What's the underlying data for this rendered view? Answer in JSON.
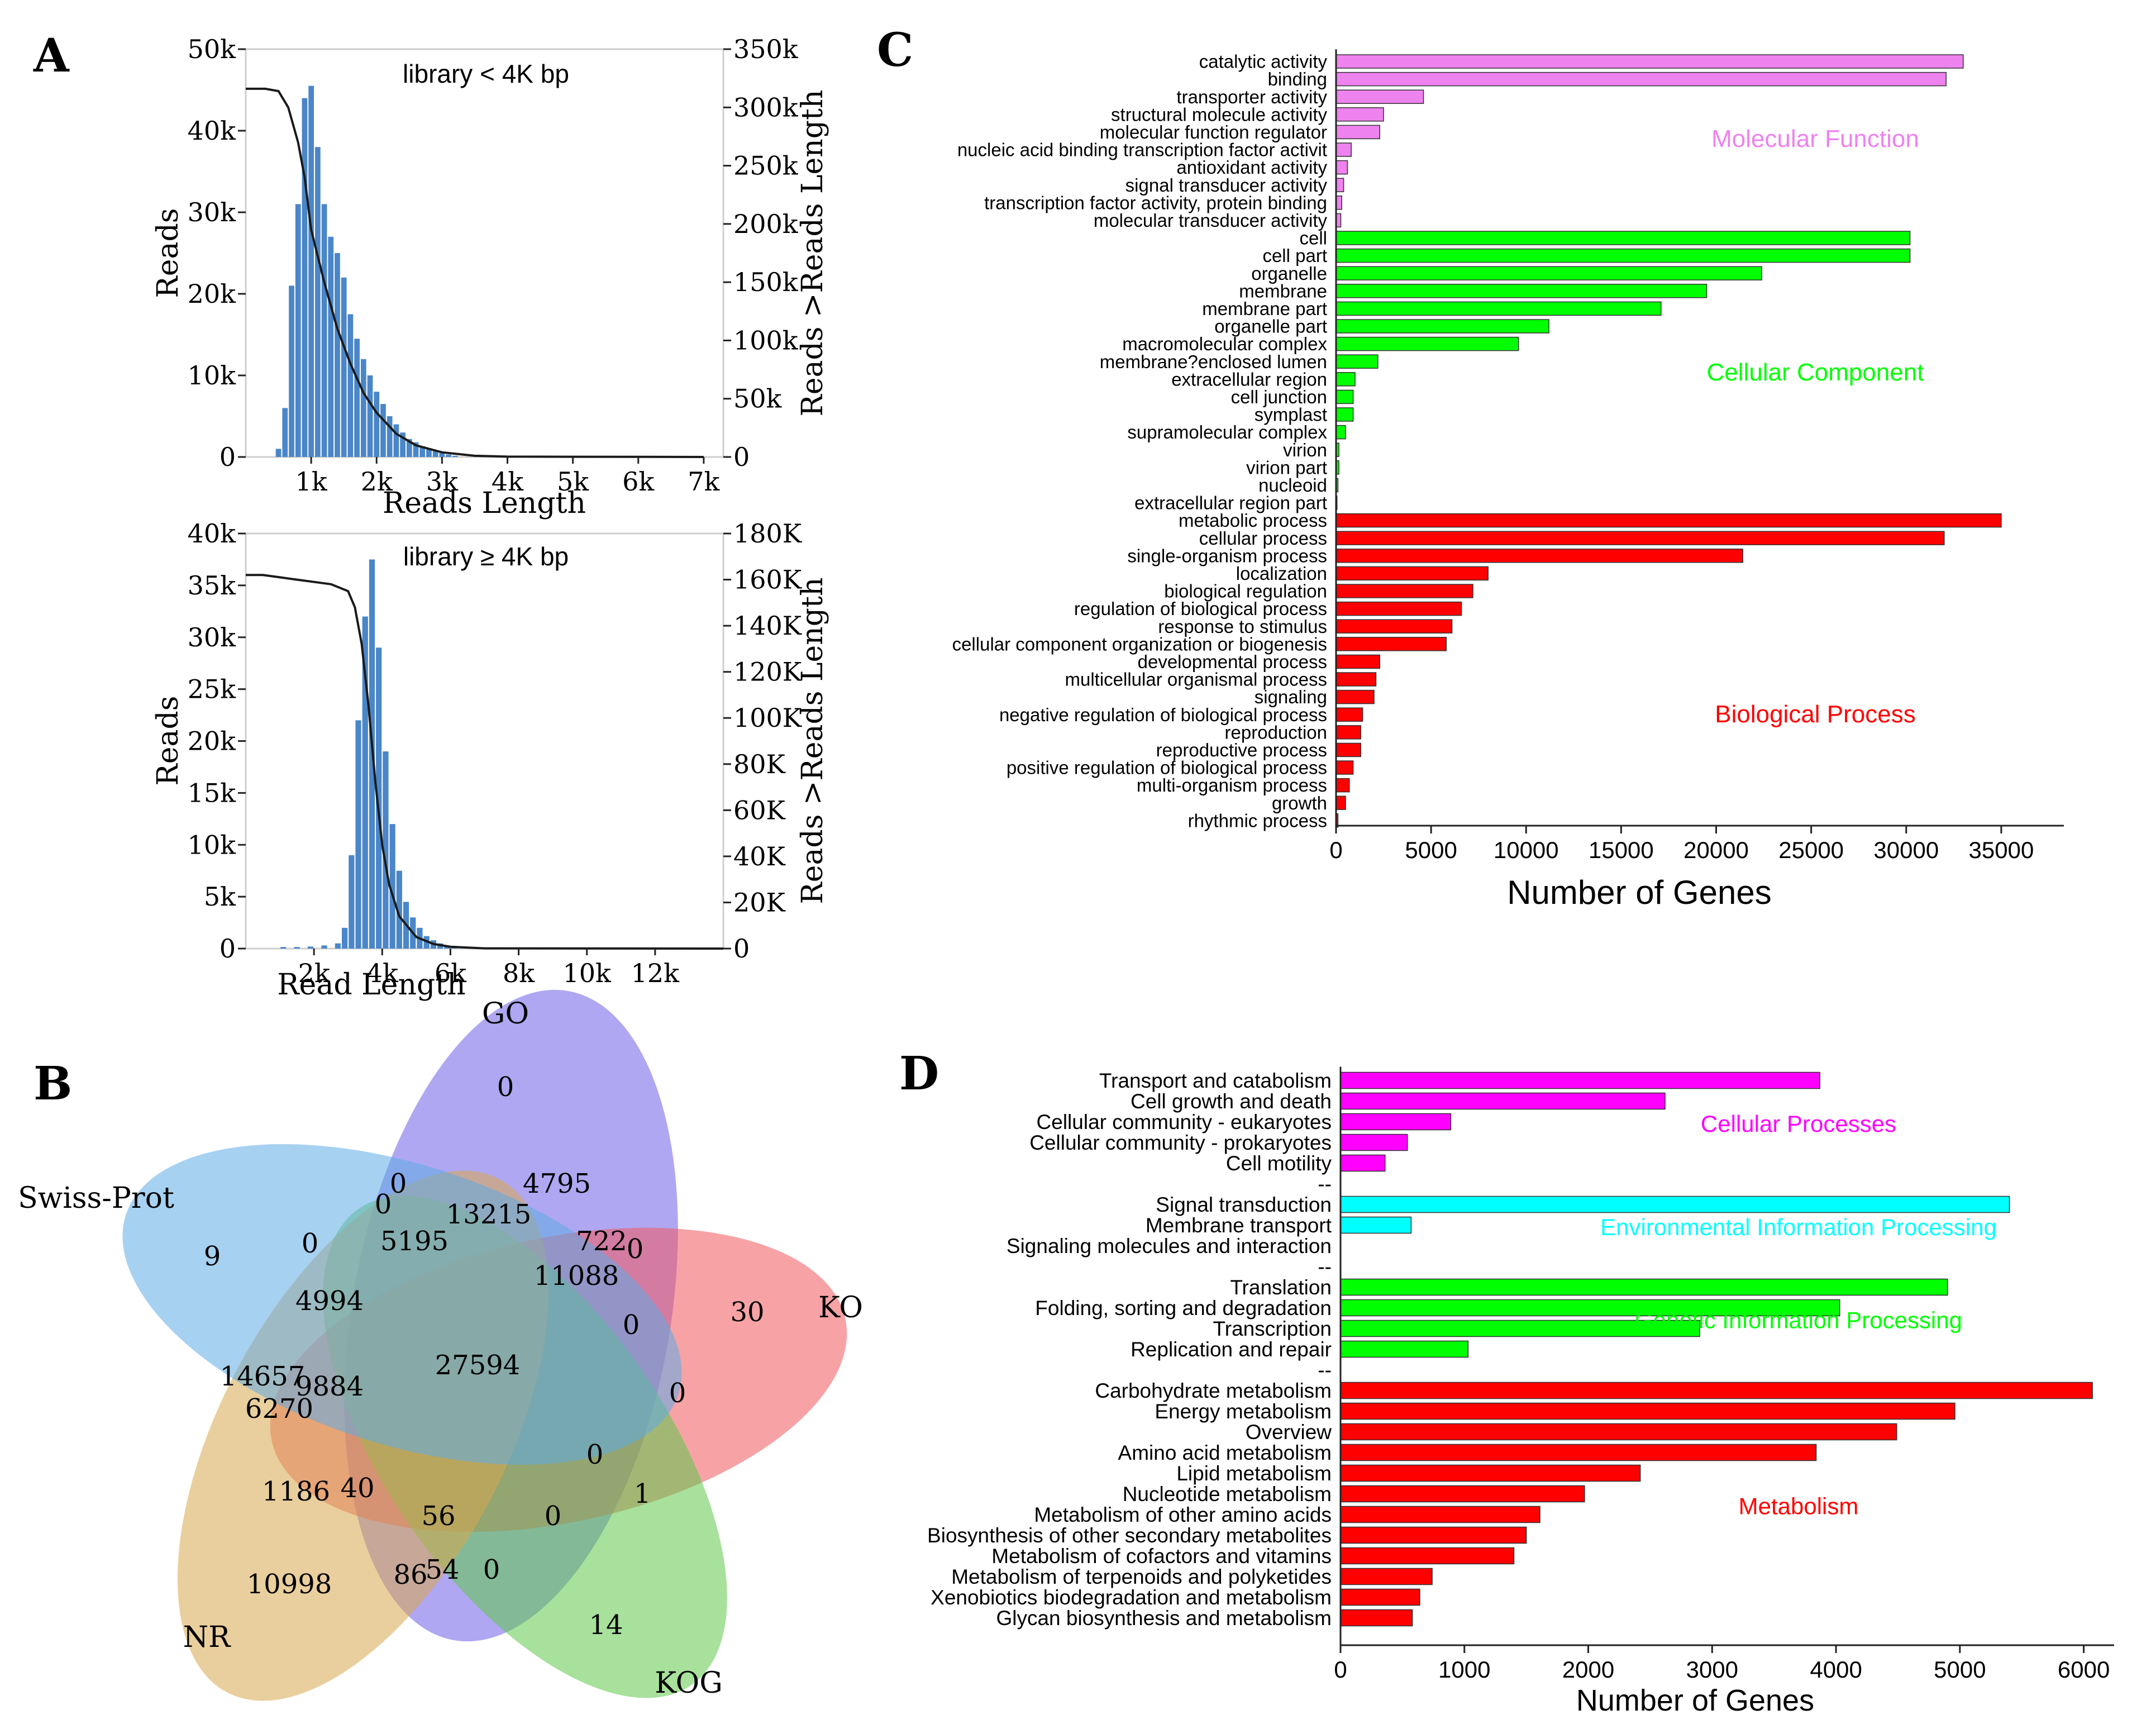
{
  "panels": {
    "a": "A",
    "b": "B",
    "c": "C",
    "d": "D"
  },
  "chart_data": [
    {
      "id": "A1",
      "type": "bar",
      "title": "library < 4K bp",
      "xlabel": "Reads Length",
      "ylabel": "Reads",
      "y2label": "Reads >Reads Length",
      "xlim": [
        0,
        7300
      ],
      "ylim": [
        0,
        50000
      ],
      "y2lim": [
        0,
        350000
      ],
      "xticks": [
        1000,
        2000,
        3000,
        4000,
        5000,
        6000,
        7000
      ],
      "xtick_labels": [
        "1k",
        "2k",
        "3k",
        "4k",
        "5k",
        "6k",
        "7k"
      ],
      "yticks": [
        0,
        10000,
        20000,
        30000,
        40000,
        50000
      ],
      "ytick_labels": [
        "0",
        "10k",
        "20k",
        "30k",
        "40k",
        "50k"
      ],
      "y2ticks": [
        0,
        50000,
        100000,
        150000,
        200000,
        250000,
        300000,
        350000
      ],
      "y2tick_labels": [
        "0",
        "50k",
        "100k",
        "150k",
        "200k",
        "250k",
        "300k",
        "350k"
      ],
      "bin_width": 100,
      "bin_start": [
        450,
        550,
        650,
        750,
        850,
        950,
        1050,
        1150,
        1250,
        1350,
        1450,
        1550,
        1650,
        1750,
        1850,
        1950,
        2050,
        2150,
        2250,
        2350,
        2450,
        2550,
        2650,
        2750,
        2850,
        2950,
        3050,
        3150
      ],
      "values": [
        1000,
        6000,
        21000,
        31000,
        44000,
        45500,
        38000,
        31000,
        27000,
        25000,
        22000,
        17500,
        14500,
        12000,
        10000,
        8000,
        6500,
        5000,
        4000,
        3000,
        2200,
        1800,
        1300,
        1000,
        700,
        500,
        300,
        150
      ],
      "cumulative_x": [
        0,
        300,
        500,
        650,
        800,
        900,
        1000,
        1200,
        1400,
        1600,
        1800,
        2000,
        2300,
        2600,
        3000,
        3500,
        4000,
        7000
      ],
      "cumulative_y": [
        316000,
        316000,
        314000,
        300000,
        270000,
        240000,
        195000,
        150000,
        110000,
        80000,
        55000,
        38000,
        20000,
        10000,
        4000,
        1000,
        300,
        0
      ]
    },
    {
      "id": "A2",
      "type": "bar",
      "title": "library ≥ 4K bp",
      "xlabel": "Read Length",
      "ylabel": "Reads",
      "y2label": "Reads >Reads Length",
      "xlim": [
        0,
        14000
      ],
      "ylim": [
        0,
        40000
      ],
      "y2lim": [
        0,
        180000
      ],
      "xticks": [
        2000,
        4000,
        6000,
        8000,
        10000,
        12000
      ],
      "xtick_labels": [
        "2k",
        "4k",
        "6k",
        "8k",
        "10k",
        "12k"
      ],
      "yticks": [
        0,
        5000,
        10000,
        15000,
        20000,
        25000,
        30000,
        35000,
        40000
      ],
      "ytick_labels": [
        "0",
        "5k",
        "10k",
        "15k",
        "20k",
        "25k",
        "30k",
        "35k",
        "40k"
      ],
      "y2ticks": [
        0,
        20000,
        40000,
        60000,
        80000,
        100000,
        120000,
        140000,
        160000,
        180000
      ],
      "y2tick_labels": [
        "0",
        "20K",
        "40K",
        "60K",
        "80K",
        "100K",
        "120K",
        "140K",
        "160K",
        "180K"
      ],
      "bin_width": 200,
      "bin_start": [
        1000,
        1400,
        1800,
        2200,
        2600,
        2800,
        3000,
        3200,
        3400,
        3600,
        3800,
        4000,
        4200,
        4400,
        4600,
        4800,
        5000,
        5200,
        5400,
        5600,
        5800,
        6000
      ],
      "values": [
        150,
        150,
        200,
        300,
        500,
        2000,
        9000,
        22000,
        32000,
        37500,
        29000,
        19000,
        12000,
        7500,
        4500,
        3000,
        2000,
        1200,
        800,
        500,
        300,
        150
      ],
      "cumulative_x": [
        0,
        500,
        1000,
        1500,
        2000,
        2500,
        3000,
        3200,
        3400,
        3600,
        3800,
        4000,
        4200,
        4500,
        5000,
        5500,
        6000,
        7000,
        14000
      ],
      "cumulative_y": [
        162000,
        162000,
        161000,
        160000,
        159000,
        158000,
        155000,
        148000,
        132000,
        105000,
        72000,
        45000,
        28000,
        14000,
        5000,
        2000,
        800,
        100,
        0
      ]
    },
    {
      "id": "C",
      "type": "bar",
      "orientation": "horizontal",
      "xlabel": "Number of Genes",
      "xlim": [
        0,
        38000
      ],
      "xticks": [
        0,
        5000,
        10000,
        15000,
        20000,
        25000,
        30000,
        35000
      ],
      "xtick_labels": [
        "0",
        "5000",
        "10000",
        "15000",
        "20000",
        "25000",
        "30000",
        "35000"
      ],
      "groups": [
        {
          "name": "Molecular Function",
          "color": "#ee82ee",
          "categories": [
            "catalytic activity",
            "binding",
            "transporter activity",
            "structural molecule activity",
            "molecular function regulator",
            "nucleic acid binding transcription factor activit",
            "antioxidant activity",
            "signal transducer activity",
            "transcription factor activity, protein binding",
            "molecular transducer activity"
          ],
          "values": [
            33000,
            32100,
            4600,
            2500,
            2300,
            800,
            600,
            400,
            300,
            250
          ]
        },
        {
          "name": "Cellular Component",
          "color": "#00ff00",
          "categories": [
            "cell",
            "cell part",
            "organelle",
            "membrane",
            "membrane part",
            "organelle part",
            "macromolecular complex",
            "membrane?enclosed lumen",
            "extracellular region",
            "cell junction",
            "symplast",
            "supramolecular complex",
            "virion",
            "virion part",
            "nucleoid",
            "extracellular region part"
          ],
          "values": [
            30200,
            30200,
            22400,
            19500,
            17100,
            11200,
            9600,
            2200,
            1000,
            900,
            900,
            500,
            150,
            150,
            100,
            50
          ]
        },
        {
          "name": "Biological Process",
          "color": "#ff0000",
          "categories": [
            "metabolic process",
            "cellular process",
            "single-organism process",
            "localization",
            "biological regulation",
            "regulation of biological process",
            "response to stimulus",
            "cellular component organization or biogenesis",
            "developmental process",
            "multicellular organismal process",
            "signaling",
            "negative regulation of biological process",
            "reproduction",
            "reproductive process",
            "positive regulation of biological process",
            "multi-organism process",
            "growth",
            "rhythmic process"
          ],
          "values": [
            35000,
            32000,
            21400,
            8000,
            7200,
            6600,
            6100,
            5800,
            2300,
            2100,
            2000,
            1400,
            1300,
            1300,
            900,
            700,
            500,
            100
          ]
        }
      ]
    },
    {
      "id": "D",
      "type": "bar",
      "orientation": "horizontal",
      "xlabel": "Number of Genes",
      "xlim": [
        0,
        6200
      ],
      "xticks": [
        0,
        1000,
        2000,
        3000,
        4000,
        5000,
        6000
      ],
      "xtick_labels": [
        "0",
        "1000",
        "2000",
        "3000",
        "4000",
        "5000",
        "6000"
      ],
      "separator": "--",
      "groups": [
        {
          "name": "Cellular Processes",
          "color": "#ff00ff",
          "categories": [
            "Transport and catabolism",
            "Cell growth and death",
            "Cellular community - eukaryotes",
            "Cellular community - prokaryotes",
            "Cell motility"
          ],
          "values": [
            3870,
            2620,
            890,
            540,
            360
          ]
        },
        {
          "name": "Environmental Information Processing",
          "color": "#00ffff",
          "categories": [
            "Signal transduction",
            "Membrane transport",
            "Signaling molecules and interaction"
          ],
          "values": [
            5400,
            570,
            0
          ]
        },
        {
          "name": "Genetic Information Processing",
          "color": "#00ff00",
          "categories": [
            "Translation",
            "Folding, sorting and degradation",
            "Transcription",
            "Replication and repair"
          ],
          "values": [
            4900,
            4030,
            2900,
            1030
          ]
        },
        {
          "name": "Metabolism",
          "color": "#ff0000",
          "categories": [
            "Carbohydrate metabolism",
            "Energy metabolism",
            "Overview",
            "Amino acid metabolism",
            "Lipid metabolism",
            "Nucleotide metabolism",
            "Metabolism of other amino acids",
            "Biosynthesis of other secondary metabolites",
            "Metabolism of cofactors and vitamins",
            "Metabolism of terpenoids and polyketides",
            "Xenobiotics biodegradation and metabolism",
            "Glycan biosynthesis and metabolism"
          ],
          "values": [
            6070,
            4960,
            4490,
            3840,
            2420,
            1970,
            1610,
            1500,
            1400,
            740,
            640,
            580
          ]
        }
      ]
    },
    {
      "id": "B",
      "type": "venn",
      "sets": [
        {
          "name": "GO",
          "color": "#6d5fe6"
        },
        {
          "name": "KO",
          "color": "#f0575d"
        },
        {
          "name": "KOG",
          "color": "#5fc94a"
        },
        {
          "name": "NR",
          "color": "#d9a84f"
        },
        {
          "name": "Swiss-Prot",
          "color": "#5eabe6"
        }
      ],
      "counts": [
        "0",
        "4795",
        "13215",
        "0",
        "0",
        "5195",
        "722",
        "0",
        "9",
        "0",
        "11088",
        "4994",
        "0",
        "30",
        "27594",
        "0",
        "14657",
        "9884",
        "6270",
        "0",
        "1186",
        "40",
        "56",
        "0",
        "1",
        "86",
        "54",
        "0",
        "10998",
        "14"
      ]
    }
  ]
}
